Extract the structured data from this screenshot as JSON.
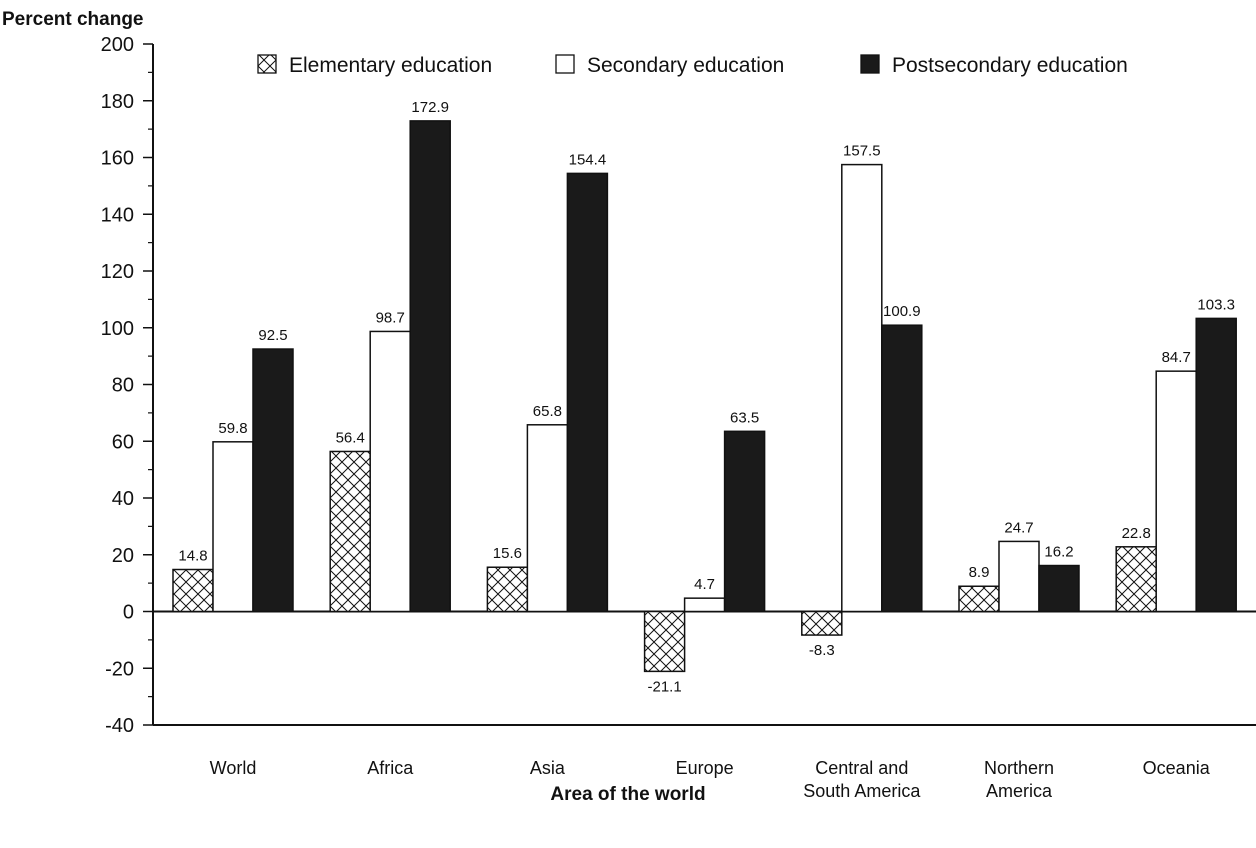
{
  "chart_data": {
    "type": "bar",
    "ylabel": "Percent change",
    "xlabel": "Area of the world",
    "ylim": [
      -40,
      200
    ],
    "yticks": [
      "200",
      "180",
      "160",
      "140",
      "120",
      "100",
      "80",
      "60",
      "40",
      "20",
      "0",
      "-20",
      "-40"
    ],
    "ytick_values": [
      200,
      180,
      160,
      140,
      120,
      100,
      80,
      60,
      40,
      20,
      0,
      -20,
      -40
    ],
    "grid": false,
    "legend_position": "top",
    "categories": [
      [
        "World"
      ],
      [
        "Africa"
      ],
      [
        "Asia"
      ],
      [
        "Europe"
      ],
      [
        "Central and",
        "South America"
      ],
      [
        "Northern",
        "America"
      ],
      [
        "Oceania"
      ]
    ],
    "series": [
      {
        "name": "Elementary education",
        "fill": "crosshatch",
        "values": [
          14.8,
          56.4,
          15.6,
          -21.1,
          -8.3,
          8.9,
          22.8
        ],
        "labels": [
          "14.8",
          "56.4",
          "15.6",
          "-21.1",
          "-8.3",
          "8.9",
          "22.8"
        ]
      },
      {
        "name": "Secondary education",
        "fill": "#ffffff",
        "values": [
          59.8,
          98.7,
          65.8,
          4.7,
          157.5,
          24.7,
          84.7
        ],
        "labels": [
          "59.8",
          "98.7",
          "65.8",
          "4.7",
          "157.5",
          "24.7",
          "84.7"
        ]
      },
      {
        "name": "Postsecondary education",
        "fill": "#1a1a1a",
        "values": [
          92.5,
          172.9,
          154.4,
          63.5,
          100.9,
          16.2,
          103.3
        ],
        "labels": [
          "92.5",
          "172.9",
          "154.4",
          "63.5",
          "100.9",
          "16.2",
          "103.3"
        ]
      }
    ]
  }
}
